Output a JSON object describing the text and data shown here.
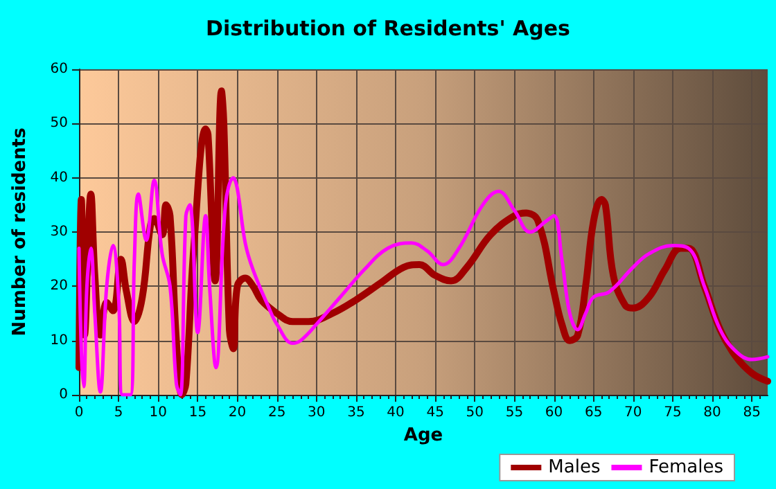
{
  "chart_data": {
    "type": "line",
    "title": "Distribution of Residents' Ages",
    "xlabel": "Age",
    "ylabel": "Number of residents",
    "xlim": [
      0,
      87
    ],
    "xticks": [
      0,
      5,
      10,
      15,
      20,
      25,
      30,
      35,
      40,
      45,
      50,
      55,
      60,
      65,
      70,
      75,
      80,
      85
    ],
    "ylim": [
      0,
      60
    ],
    "yticks": [
      0,
      10,
      20,
      30,
      40,
      50,
      60
    ],
    "grid": true,
    "legend": "bottom right",
    "marker": "none",
    "line_style": "solid",
    "series": [
      {
        "name": "Males",
        "color": "#a00000",
        "x": [
          0,
          0.3,
          0.7,
          1.5,
          2,
          2.7,
          3.5,
          4.3,
          5.3,
          6,
          7,
          8,
          9,
          9.5,
          10.5,
          11,
          11.5,
          12.3,
          13,
          13.5,
          14.5,
          16,
          16.3,
          17.2,
          18,
          18.3,
          19,
          19.5,
          20,
          21,
          22,
          23,
          25,
          27,
          29,
          32,
          35,
          38,
          41,
          43,
          45,
          47,
          49,
          52,
          55,
          56.5,
          58,
          60,
          61,
          62,
          63,
          64,
          65,
          66,
          66.5,
          67.5,
          69,
          70,
          72,
          74,
          76,
          77,
          79,
          81,
          83,
          85,
          87
        ],
        "values": [
          5,
          36,
          11,
          37,
          22,
          11,
          17,
          15.5,
          25,
          19,
          13.5,
          18,
          31,
          32.5,
          29.5,
          35,
          33,
          10,
          0,
          2,
          27,
          49,
          48,
          21,
          56,
          50,
          12,
          8.5,
          20,
          21.5,
          20,
          17.5,
          15,
          13.5,
          13.5,
          15,
          17.5,
          20.5,
          23.5,
          24,
          22,
          21,
          23.5,
          29.5,
          33,
          33.5,
          32,
          19,
          13,
          10,
          11,
          20,
          32,
          36,
          35,
          22,
          16.5,
          16,
          18,
          23,
          27,
          27,
          20,
          12,
          7,
          4,
          2.5
        ]
      },
      {
        "name": "Females",
        "color": "#ff00ff",
        "x": [
          0,
          0.3,
          0.6,
          1,
          1.5,
          2,
          2.7,
          3.5,
          4.3,
          5,
          5.5,
          6.5,
          7,
          7.5,
          8.5,
          9.5,
          10.5,
          11.5,
          12.3,
          12.8,
          13.5,
          14,
          15,
          16,
          16.5,
          17.3,
          18.5,
          19.5,
          20,
          21,
          22,
          24,
          25,
          27,
          28,
          30,
          33,
          36,
          39,
          42,
          44,
          46,
          48,
          51,
          53,
          55,
          57,
          59,
          60,
          61,
          62,
          63,
          64,
          65,
          67,
          70,
          72,
          75,
          77,
          79,
          81,
          83,
          85,
          87
        ],
        "values": [
          27,
          8,
          1.5,
          20,
          27,
          15,
          0.5,
          20,
          27.5,
          18,
          0,
          0,
          25,
          37,
          28.5,
          39.5,
          26,
          20,
          2,
          0,
          33,
          35,
          11.5,
          33,
          20,
          5,
          35,
          40,
          38,
          28,
          23,
          16,
          13,
          9.5,
          10,
          13,
          18,
          23,
          27,
          28,
          26.5,
          24,
          27,
          35,
          37.5,
          34,
          30,
          32,
          33,
          25,
          15,
          12,
          15,
          18,
          19,
          23.5,
          26,
          27.5,
          27,
          20,
          12,
          8,
          6.5,
          7
        ]
      }
    ]
  }
}
